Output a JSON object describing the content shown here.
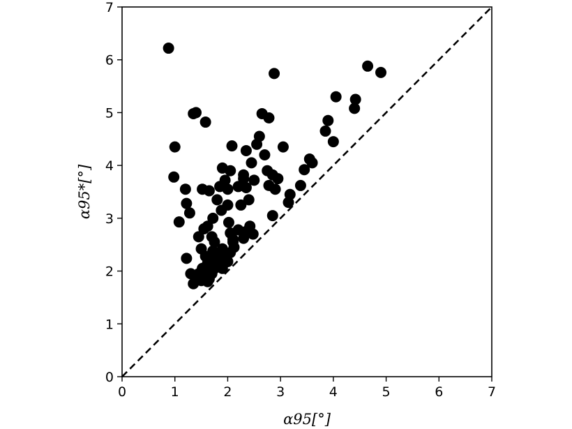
{
  "chart_data": {
    "type": "scatter",
    "title": "",
    "xlabel": "α95[°]",
    "ylabel": "α95*[°]",
    "xlim": [
      0,
      7
    ],
    "ylim": [
      0,
      7
    ],
    "xticks": [
      "0",
      "1",
      "2",
      "3",
      "4",
      "5",
      "6",
      "7"
    ],
    "yticks": [
      "0",
      "1",
      "2",
      "3",
      "4",
      "5",
      "6",
      "7"
    ],
    "grid": false,
    "reference_line": {
      "style": "dashed",
      "from": [
        0,
        0
      ],
      "to": [
        7,
        7
      ]
    },
    "marker_color": "#000000",
    "points": [
      [
        0.88,
        6.22
      ],
      [
        1.35,
        4.98
      ],
      [
        1.4,
        5.0
      ],
      [
        1.58,
        4.82
      ],
      [
        1.0,
        4.35
      ],
      [
        0.98,
        3.78
      ],
      [
        1.2,
        3.55
      ],
      [
        1.22,
        3.28
      ],
      [
        1.08,
        2.93
      ],
      [
        1.28,
        3.1
      ],
      [
        1.22,
        2.24
      ],
      [
        1.52,
        3.55
      ],
      [
        1.65,
        3.52
      ],
      [
        1.85,
        3.6
      ],
      [
        1.9,
        3.95
      ],
      [
        1.95,
        3.72
      ],
      [
        2.0,
        3.55
      ],
      [
        2.05,
        3.9
      ],
      [
        2.08,
        4.37
      ],
      [
        2.2,
        3.6
      ],
      [
        2.3,
        3.82
      ],
      [
        2.35,
        3.58
      ],
      [
        2.4,
        3.35
      ],
      [
        2.45,
        4.05
      ],
      [
        2.5,
        3.72
      ],
      [
        2.35,
        4.28
      ],
      [
        2.55,
        4.4
      ],
      [
        2.6,
        4.55
      ],
      [
        2.65,
        4.98
      ],
      [
        2.78,
        4.9
      ],
      [
        2.7,
        4.2
      ],
      [
        2.75,
        3.9
      ],
      [
        2.78,
        3.62
      ],
      [
        2.85,
        3.82
      ],
      [
        2.9,
        3.55
      ],
      [
        2.95,
        3.75
      ],
      [
        3.05,
        4.35
      ],
      [
        2.88,
        5.74
      ],
      [
        2.85,
        3.05
      ],
      [
        3.15,
        3.3
      ],
      [
        3.18,
        3.45
      ],
      [
        3.38,
        3.62
      ],
      [
        3.45,
        3.92
      ],
      [
        3.55,
        4.12
      ],
      [
        3.6,
        4.05
      ],
      [
        3.85,
        4.65
      ],
      [
        3.9,
        4.85
      ],
      [
        4.0,
        4.45
      ],
      [
        4.05,
        5.3
      ],
      [
        4.4,
        5.08
      ],
      [
        4.42,
        5.25
      ],
      [
        4.65,
        5.88
      ],
      [
        4.9,
        5.76
      ],
      [
        1.45,
        2.65
      ],
      [
        1.55,
        2.8
      ],
      [
        1.62,
        2.85
      ],
      [
        1.72,
        3.0
      ],
      [
        1.8,
        3.35
      ],
      [
        1.88,
        3.15
      ],
      [
        2.0,
        3.25
      ],
      [
        2.02,
        2.92
      ],
      [
        2.05,
        2.72
      ],
      [
        2.1,
        2.6
      ],
      [
        2.2,
        2.78
      ],
      [
        2.25,
        3.25
      ],
      [
        2.3,
        2.62
      ],
      [
        2.35,
        2.75
      ],
      [
        2.42,
        2.85
      ],
      [
        2.48,
        2.7
      ],
      [
        2.12,
        2.45
      ],
      [
        1.5,
        2.42
      ],
      [
        1.58,
        2.28
      ],
      [
        1.62,
        2.15
      ],
      [
        1.68,
        2.25
      ],
      [
        1.72,
        2.38
      ],
      [
        1.75,
        2.55
      ],
      [
        1.8,
        2.3
      ],
      [
        1.85,
        2.15
      ],
      [
        1.9,
        2.42
      ],
      [
        1.95,
        2.28
      ],
      [
        2.0,
        2.18
      ],
      [
        2.05,
        2.35
      ],
      [
        1.3,
        1.95
      ],
      [
        1.35,
        1.76
      ],
      [
        1.4,
        1.85
      ],
      [
        1.45,
        1.95
      ],
      [
        1.5,
        1.82
      ],
      [
        1.55,
        1.9
      ],
      [
        1.6,
        2.0
      ],
      [
        1.65,
        1.85
      ],
      [
        1.7,
        1.95
      ],
      [
        1.75,
        2.05
      ],
      [
        1.8,
        2.1
      ],
      [
        1.62,
        1.8
      ],
      [
        1.85,
        2.25
      ],
      [
        1.9,
        2.05
      ],
      [
        2.3,
        3.75
      ],
      [
        1.7,
        2.65
      ],
      [
        2.1,
        2.55
      ],
      [
        1.52,
        2.05
      ]
    ]
  }
}
